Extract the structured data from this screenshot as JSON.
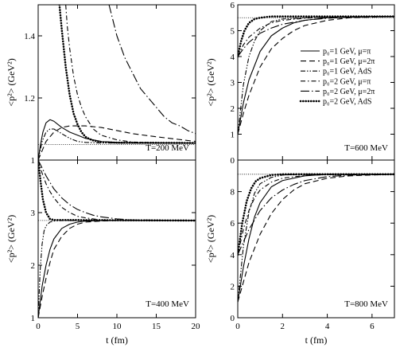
{
  "chart_data": [
    {
      "type": "line",
      "panel_label": "T=200 MeV",
      "xlabel": "",
      "ylabel": "<p²> (GeV²)",
      "xlim": [
        0,
        20
      ],
      "ylim": [
        1.0,
        1.5
      ],
      "xticks": [],
      "xtick_labels": [],
      "yticks": [
        1.0,
        1.2,
        1.4
      ],
      "ytick_labels": [
        "1",
        "1.2",
        "1.4"
      ],
      "reference_level": 1.05,
      "series": [
        {
          "name": "p₀=1 GeV, μ=π",
          "style": "solid",
          "x": [
            0,
            0.3,
            0.6,
            1.0,
            1.5,
            2.0,
            2.5,
            3.0,
            4.0,
            5.0,
            6.0,
            7.0,
            8.0,
            10.0,
            12.0,
            15.0,
            20.0
          ],
          "y": [
            1.0,
            1.05,
            1.09,
            1.12,
            1.13,
            1.125,
            1.115,
            1.105,
            1.09,
            1.08,
            1.07,
            1.065,
            1.06,
            1.057,
            1.055,
            1.055,
            1.055
          ]
        },
        {
          "name": "p₀=1 GeV, μ=2π",
          "style": "dashed",
          "x": [
            0,
            0.5,
            1.0,
            2.0,
            3.0,
            4.0,
            5.0,
            6.0,
            8.0,
            10.0,
            12.0,
            15.0,
            20.0
          ],
          "y": [
            1.0,
            1.03,
            1.06,
            1.09,
            1.105,
            1.11,
            1.11,
            1.11,
            1.105,
            1.095,
            1.085,
            1.075,
            1.06
          ]
        },
        {
          "name": "p₀=1 GeV, AdS",
          "style": "dashdotdot",
          "x": [
            0,
            0.5,
            1.0,
            1.5,
            2.0,
            3.0,
            4.0,
            5.0,
            6.0,
            8.0,
            10.0,
            20.0
          ],
          "y": [
            1.0,
            1.06,
            1.09,
            1.1,
            1.1,
            1.085,
            1.07,
            1.06,
            1.057,
            1.055,
            1.055,
            1.055
          ]
        },
        {
          "name": "p₀=2 GeV, μ=π",
          "style": "dashdot",
          "x": [
            3.5,
            3.7,
            4.0,
            4.5,
            5.0,
            5.5,
            6.0,
            6.5,
            7.0,
            8.0,
            10.0,
            12.0,
            15.0,
            20.0
          ],
          "y": [
            1.5,
            1.43,
            1.36,
            1.27,
            1.21,
            1.17,
            1.14,
            1.12,
            1.1,
            1.08,
            1.065,
            1.058,
            1.056,
            1.055
          ]
        },
        {
          "name": "p₀=2 GeV, μ=2π",
          "style": "longdashdot",
          "x": [
            9.0,
            10.0,
            11.0,
            12.0,
            13.0,
            14.0,
            15.0,
            16.0,
            17.0,
            18.0,
            19.0,
            20.0
          ],
          "y": [
            1.5,
            1.4,
            1.33,
            1.28,
            1.23,
            1.2,
            1.17,
            1.14,
            1.12,
            1.11,
            1.095,
            1.085
          ]
        },
        {
          "name": "p₀=2 GeV, AdS",
          "style": "dotted",
          "x": [
            2.7,
            3.0,
            3.5,
            4.0,
            4.5,
            5.0,
            5.5,
            6.0,
            6.5,
            7.0,
            8.0,
            10.0,
            20.0
          ],
          "y": [
            1.5,
            1.42,
            1.3,
            1.21,
            1.15,
            1.115,
            1.09,
            1.075,
            1.068,
            1.063,
            1.058,
            1.056,
            1.055
          ]
        }
      ]
    },
    {
      "type": "line",
      "panel_label": "T=600 MeV",
      "xlabel": "",
      "ylabel": "<p²> (GeV²)",
      "xlim": [
        0,
        7
      ],
      "ylim": [
        0,
        6
      ],
      "xticks": [],
      "xtick_labels": [],
      "yticks": [
        0,
        1,
        2,
        3,
        4,
        5,
        6
      ],
      "ytick_labels": [
        "0",
        "1",
        "2",
        "3",
        "4",
        "5",
        "6"
      ],
      "reference_level": 5.5,
      "series": [
        {
          "name": "p₀=1 GeV, μ=π",
          "style": "solid",
          "x": [
            0,
            0.25,
            0.5,
            1.0,
            1.5,
            2.0,
            2.5,
            3.0,
            4.0,
            5.0,
            6.0,
            7.0
          ],
          "y": [
            1.0,
            2.2,
            3.1,
            4.2,
            4.8,
            5.1,
            5.3,
            5.4,
            5.5,
            5.52,
            5.55,
            5.55
          ]
        },
        {
          "name": "p₀=1 GeV, μ=2π",
          "style": "dashed",
          "x": [
            0,
            0.25,
            0.5,
            1.0,
            1.5,
            2.0,
            2.5,
            3.0,
            4.0,
            5.0,
            6.0,
            7.0
          ],
          "y": [
            1.0,
            1.8,
            2.5,
            3.6,
            4.3,
            4.7,
            5.0,
            5.2,
            5.4,
            5.5,
            5.52,
            5.55
          ]
        },
        {
          "name": "p₀=1 GeV, AdS",
          "style": "dashdotdot",
          "x": [
            0,
            0.25,
            0.5,
            0.75,
            1.0,
            1.5,
            2.0,
            3.0,
            4.0,
            7.0
          ],
          "y": [
            1.0,
            2.9,
            4.0,
            4.6,
            5.0,
            5.35,
            5.45,
            5.5,
            5.52,
            5.55
          ]
        },
        {
          "name": "p₀=2 GeV, μ=π",
          "style": "dashdot",
          "x": [
            0,
            0.25,
            0.5,
            1.0,
            1.5,
            2.0,
            3.0,
            4.0,
            7.0
          ],
          "y": [
            4.0,
            4.45,
            4.75,
            5.1,
            5.3,
            5.4,
            5.48,
            5.52,
            5.55
          ]
        },
        {
          "name": "p₀=2 GeV, μ=2π",
          "style": "longdashdot",
          "x": [
            0,
            0.25,
            0.5,
            1.0,
            1.5,
            2.0,
            3.0,
            4.0,
            5.0,
            7.0
          ],
          "y": [
            4.0,
            4.3,
            4.55,
            4.9,
            5.1,
            5.25,
            5.4,
            5.48,
            5.52,
            5.55
          ]
        },
        {
          "name": "p₀=2 GeV, AdS",
          "style": "dotted",
          "x": [
            0,
            0.15,
            0.3,
            0.5,
            0.75,
            1.0,
            1.5,
            2.0,
            7.0
          ],
          "y": [
            4.0,
            4.6,
            5.0,
            5.3,
            5.45,
            5.5,
            5.55,
            5.55,
            5.55
          ]
        }
      ],
      "legend_position": "right"
    },
    {
      "type": "line",
      "panel_label": "T=400 MeV",
      "xlabel": "t (fm)",
      "ylabel": "<p²> (GeV²)",
      "xlim": [
        0,
        20
      ],
      "ylim": [
        1,
        4
      ],
      "xticks": [
        0,
        5,
        10,
        15,
        20
      ],
      "xtick_labels": [
        "0",
        "5",
        "10",
        "15",
        "20"
      ],
      "yticks": [
        1,
        2,
        3
      ],
      "ytick_labels": [
        "1",
        "2",
        "3"
      ],
      "reference_level": 2.85,
      "series": [
        {
          "name": "p₀=1 GeV, μ=π",
          "style": "solid",
          "x": [
            0,
            0.25,
            0.5,
            1.0,
            1.5,
            2.0,
            3.0,
            4.0,
            5.0,
            6.0,
            8.0,
            10.0,
            20.0
          ],
          "y": [
            1.0,
            1.3,
            1.6,
            2.0,
            2.3,
            2.5,
            2.7,
            2.78,
            2.82,
            2.84,
            2.85,
            2.85,
            2.85
          ]
        },
        {
          "name": "p₀=1 GeV, μ=2π",
          "style": "dashed",
          "x": [
            0,
            0.5,
            1.0,
            1.5,
            2.0,
            3.0,
            4.0,
            5.0,
            6.0,
            8.0,
            10.0,
            20.0
          ],
          "y": [
            1.0,
            1.4,
            1.75,
            2.05,
            2.3,
            2.55,
            2.7,
            2.78,
            2.82,
            2.84,
            2.85,
            2.85
          ]
        },
        {
          "name": "p₀=1 GeV, AdS",
          "style": "dashdotdot",
          "x": [
            0,
            0.25,
            0.5,
            0.75,
            1.0,
            1.5,
            2.0,
            3.0,
            20.0
          ],
          "y": [
            1.0,
            1.9,
            2.4,
            2.65,
            2.75,
            2.82,
            2.84,
            2.85,
            2.85
          ]
        },
        {
          "name": "p₀=2 GeV, μ=π",
          "style": "dashdot",
          "x": [
            0,
            0.5,
            1.0,
            1.5,
            2.0,
            3.0,
            4.0,
            5.0,
            6.0,
            8.0,
            10.0,
            20.0
          ],
          "y": [
            4.0,
            3.75,
            3.55,
            3.4,
            3.28,
            3.1,
            3.0,
            2.93,
            2.9,
            2.86,
            2.85,
            2.85
          ]
        },
        {
          "name": "p₀=2 GeV, μ=2π",
          "style": "longdashdot",
          "x": [
            0,
            1.0,
            2.0,
            3.0,
            4.0,
            5.0,
            6.0,
            7.0,
            8.0,
            10.0,
            12.0,
            20.0
          ],
          "y": [
            4.0,
            3.7,
            3.45,
            3.28,
            3.15,
            3.06,
            3.0,
            2.95,
            2.92,
            2.88,
            2.86,
            2.85
          ]
        },
        {
          "name": "p₀=2 GeV, AdS",
          "style": "dotted",
          "x": [
            0,
            0.3,
            0.6,
            1.0,
            1.5,
            2.0,
            20.0
          ],
          "y": [
            4.0,
            3.6,
            3.25,
            3.0,
            2.88,
            2.86,
            2.85
          ]
        }
      ]
    },
    {
      "type": "line",
      "panel_label": "T=800 MeV",
      "xlabel": "t (fm)",
      "ylabel": "<p²> (GeV²)",
      "xlim": [
        0,
        7
      ],
      "ylim": [
        0,
        10
      ],
      "xticks": [
        0,
        2,
        4,
        6
      ],
      "xtick_labels": [
        "0",
        "2",
        "4",
        "6"
      ],
      "yticks": [
        0,
        2,
        4,
        6,
        8
      ],
      "ytick_labels": [
        "0",
        "2",
        "4",
        "6",
        "8"
      ],
      "reference_level": 9.1,
      "series": [
        {
          "name": "p₀=1 GeV, μ=π",
          "style": "solid",
          "x": [
            0,
            0.25,
            0.5,
            0.75,
            1.0,
            1.5,
            2.0,
            3.0,
            4.0,
            5.0,
            7.0
          ],
          "y": [
            1.0,
            3.2,
            5.0,
            6.4,
            7.3,
            8.3,
            8.7,
            9.0,
            9.1,
            9.1,
            9.1
          ]
        },
        {
          "name": "p₀=1 GeV, μ=2π",
          "style": "dashed",
          "x": [
            0,
            0.5,
            1.0,
            1.5,
            2.0,
            2.5,
            3.0,
            4.0,
            5.0,
            6.0,
            7.0
          ],
          "y": [
            1.0,
            3.5,
            5.3,
            6.6,
            7.5,
            8.1,
            8.5,
            8.85,
            9.0,
            9.05,
            9.1
          ]
        },
        {
          "name": "p₀=1 GeV, AdS",
          "style": "dashdotdot",
          "x": [
            0,
            0.25,
            0.5,
            0.75,
            1.0,
            1.5,
            2.0,
            3.0,
            7.0
          ],
          "y": [
            1.0,
            4.5,
            6.7,
            7.9,
            8.5,
            8.9,
            9.05,
            9.1,
            9.1
          ]
        },
        {
          "name": "p₀=2 GeV, μ=π",
          "style": "dashdot",
          "x": [
            0,
            0.25,
            0.5,
            0.75,
            1.0,
            1.5,
            2.0,
            3.0,
            4.0,
            7.0
          ],
          "y": [
            4.0,
            5.6,
            6.8,
            7.6,
            8.1,
            8.6,
            8.85,
            9.02,
            9.08,
            9.1
          ]
        },
        {
          "name": "p₀=2 GeV, μ=2π",
          "style": "longdashdot",
          "x": [
            0,
            0.5,
            1.0,
            1.5,
            2.0,
            2.5,
            3.0,
            4.0,
            5.0,
            7.0
          ],
          "y": [
            4.0,
            5.6,
            6.8,
            7.6,
            8.1,
            8.45,
            8.7,
            8.95,
            9.05,
            9.1
          ]
        },
        {
          "name": "p₀=2 GeV, AdS",
          "style": "dotted",
          "x": [
            0,
            0.2,
            0.4,
            0.6,
            0.8,
            1.0,
            1.5,
            2.0,
            7.0
          ],
          "y": [
            4.0,
            6.0,
            7.4,
            8.2,
            8.65,
            8.85,
            9.05,
            9.1,
            9.1
          ]
        }
      ]
    }
  ],
  "legend": {
    "position": "right",
    "entries": [
      "p₀=1 GeV, μ=π",
      "p₀=1 GeV, μ=2π",
      "p₀=1 GeV, AdS",
      "p₀=2 GeV, μ=π",
      "p₀=2 GeV, μ=2π",
      "p₀=2 GeV, AdS"
    ]
  },
  "colors": {
    "line": "#000000",
    "reference": "#000000"
  }
}
